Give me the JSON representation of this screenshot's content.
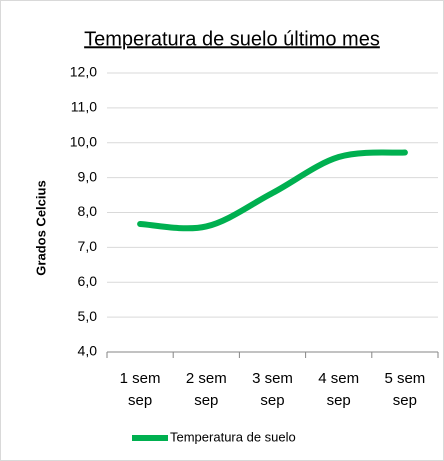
{
  "chart_data": {
    "type": "line",
    "title": "Temperatura de suelo último mes",
    "y_label": "Grados Celcius",
    "categories": [
      "1 sem sep",
      "2 sem sep",
      "3 sem sep",
      "4 sem sep",
      "5 sem sep"
    ],
    "series": [
      {
        "name": "Temperatura de suelo",
        "color": "#00b050",
        "values": [
          7.67,
          7.6,
          8.56,
          9.59,
          9.72
        ]
      }
    ],
    "ylim": [
      4,
      12
    ],
    "yticks": [
      {
        "value": 4,
        "label": "4,0"
      },
      {
        "value": 5,
        "label": "5,0"
      },
      {
        "value": 6,
        "label": "6,0"
      },
      {
        "value": 7,
        "label": "7,0"
      },
      {
        "value": 8,
        "label": "8,0"
      },
      {
        "value": 9,
        "label": "9,0"
      },
      {
        "value": 10,
        "label": "10,0"
      },
      {
        "value": 11,
        "label": "11,0"
      },
      {
        "value": 12,
        "label": "12,0"
      }
    ],
    "grid": true,
    "smooth": true,
    "legend": "bottom"
  }
}
